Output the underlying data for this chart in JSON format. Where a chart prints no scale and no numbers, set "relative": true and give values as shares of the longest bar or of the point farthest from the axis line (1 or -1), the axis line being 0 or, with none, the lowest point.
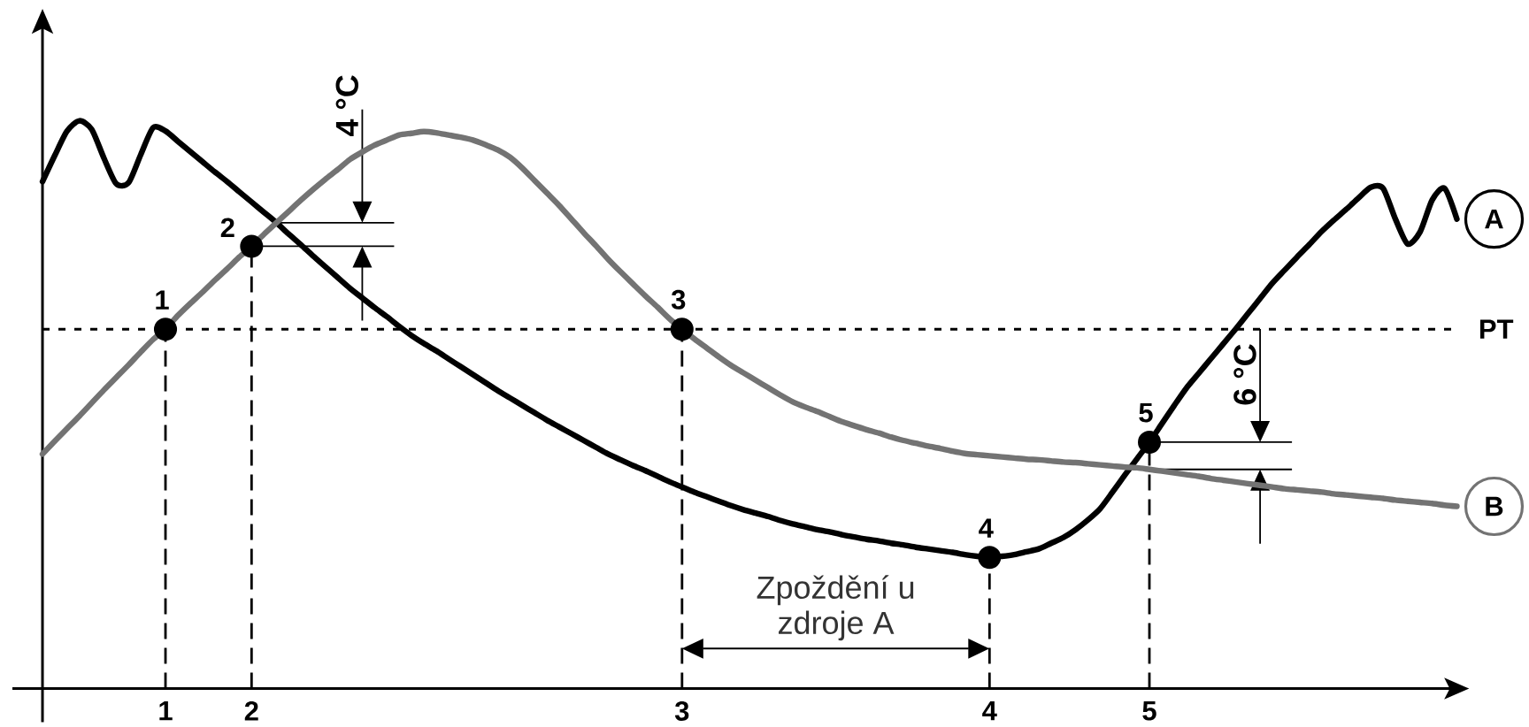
{
  "chart_data": {
    "type": "line",
    "relative": true,
    "legend": "right",
    "categories": [
      null,
      null,
      null,
      null,
      null,
      null,
      null,
      null,
      null,
      null,
      "1",
      null,
      null,
      null,
      null,
      null,
      null,
      "2",
      null,
      null,
      null,
      null,
      null,
      null,
      null,
      null,
      null,
      null,
      null,
      null,
      null,
      null,
      null,
      null,
      null,
      null,
      null,
      null,
      null,
      null,
      null,
      null,
      null,
      null,
      null,
      null,
      null,
      null,
      null,
      null,
      null,
      null,
      "3",
      null,
      null,
      null,
      null,
      null,
      null,
      null,
      null,
      null,
      null,
      null,
      null,
      null,
      null,
      null,
      null,
      null,
      null,
      null,
      null,
      null,
      null,
      null,
      null,
      "4",
      null,
      null,
      null,
      null,
      null,
      null,
      null,
      null,
      null,
      null,
      null,
      null,
      "5",
      null,
      null,
      null,
      null,
      null,
      null,
      null,
      null,
      null,
      null,
      null,
      null,
      null,
      null,
      null,
      null,
      null,
      null,
      null,
      null,
      null,
      null,
      null,
      null,
      null
    ],
    "series": [
      {
        "name": "A",
        "color": "#000000",
        "values": [
          0.893,
          0.939,
          0.982,
          1,
          0.985,
          0.934,
          0.889,
          0.891,
          0.941,
          0.988,
          0.982,
          0.964,
          0.946,
          0.928,
          0.91,
          0.893,
          0.875,
          0.857,
          0.839,
          0.821,
          0.801,
          0.782,
          0.762,
          0.743,
          0.724,
          0.705,
          0.688,
          0.671,
          0.655,
          0.638,
          0.622,
          0.608,
          0.595,
          0.581,
          0.567,
          0.553,
          0.539,
          0.525,
          0.512,
          0.499,
          0.486,
          0.473,
          0.461,
          0.449,
          0.437,
          0.425,
          0.413,
          0.403,
          0.393,
          0.384,
          0.374,
          0.364,
          0.355,
          0.346,
          0.338,
          0.33,
          0.322,
          0.315,
          0.309,
          0.303,
          0.296,
          0.29,
          0.285,
          0.28,
          0.276,
          0.271,
          0.267,
          0.263,
          0.26,
          0.256,
          0.253,
          0.249,
          0.246,
          0.243,
          0.24,
          0.236,
          0.233,
          0.231,
          0.233,
          0.236,
          0.241,
          0.246,
          0.256,
          0.266,
          0.28,
          0.297,
          0.317,
          0.346,
          0.376,
          0.405,
          0.434,
          0.466,
          0.498,
          0.529,
          0.555,
          0.581,
          0.607,
          0.633,
          0.66,
          0.687,
          0.714,
          0.737,
          0.76,
          0.782,
          0.805,
          0.825,
          0.844,
          0.864,
          0.883,
          0.881,
          0.827,
          0.783,
          0.804,
          0.861,
          0.881,
          0.827
        ]
      },
      {
        "name": "B",
        "color": "#737373",
        "values": [
          0.413,
          0.436,
          0.458,
          0.48,
          0.503,
          0.526,
          0.548,
          0.57,
          0.593,
          0.615,
          0.633,
          0.657,
          0.678,
          0.698,
          0.719,
          0.739,
          0.76,
          0.779,
          0.8,
          0.82,
          0.84,
          0.86,
          0.879,
          0.897,
          0.914,
          0.932,
          0.945,
          0.957,
          0.966,
          0.975,
          0.978,
          0.981,
          0.979,
          0.975,
          0.971,
          0.966,
          0.958,
          0.949,
          0.936,
          0.917,
          0.895,
          0.873,
          0.851,
          0.827,
          0.803,
          0.78,
          0.756,
          0.734,
          0.713,
          0.692,
          0.672,
          0.651,
          0.633,
          0.616,
          0.6,
          0.584,
          0.569,
          0.556,
          0.543,
          0.53,
          0.517,
          0.505,
          0.496,
          0.488,
          0.479,
          0.47,
          0.463,
          0.456,
          0.45,
          0.443,
          0.437,
          0.432,
          0.427,
          0.423,
          0.418,
          0.414,
          0.412,
          0.41,
          0.408,
          0.406,
          0.404,
          0.403,
          0.401,
          0.399,
          0.398,
          0.396,
          0.394,
          0.392,
          0.39,
          0.389,
          0.386,
          0.383,
          0.38,
          0.377,
          0.374,
          0.37,
          0.367,
          0.364,
          0.361,
          0.358,
          0.355,
          0.352,
          0.35,
          0.348,
          0.346,
          0.343,
          0.341,
          0.339,
          0.337,
          0.335,
          0.332,
          0.33,
          0.328,
          0.326,
          0.323,
          0.321
        ]
      },
      {
        "type": "lollipop",
        "x": [
          "1",
          "2",
          "3",
          "4",
          "5"
        ],
        "values": [
          0.633,
          0.779,
          0.633,
          0.231,
          0.434
        ],
        "color": "#000000",
        "marker": "circle",
        "line_style": "dashed"
      }
    ],
    "ref_lines": [
      {
        "axis": "y",
        "value": 0.633,
        "label": "PT",
        "line_style": "dotted",
        "color": "#000000"
      }
    ],
    "annotations": [
      {
        "text": "1",
        "x": "1",
        "y": 0.633
      },
      {
        "text": "2",
        "x": "2",
        "y": 0.779
      },
      {
        "text": "3",
        "x": "3",
        "y": 0.633
      },
      {
        "text": "4",
        "x": "4",
        "y": 0.231
      },
      {
        "text": "5",
        "x": "5",
        "y": 0.434
      },
      "4 °C",
      "6 °C",
      "Zpoždění u zdroje A"
    ]
  }
}
